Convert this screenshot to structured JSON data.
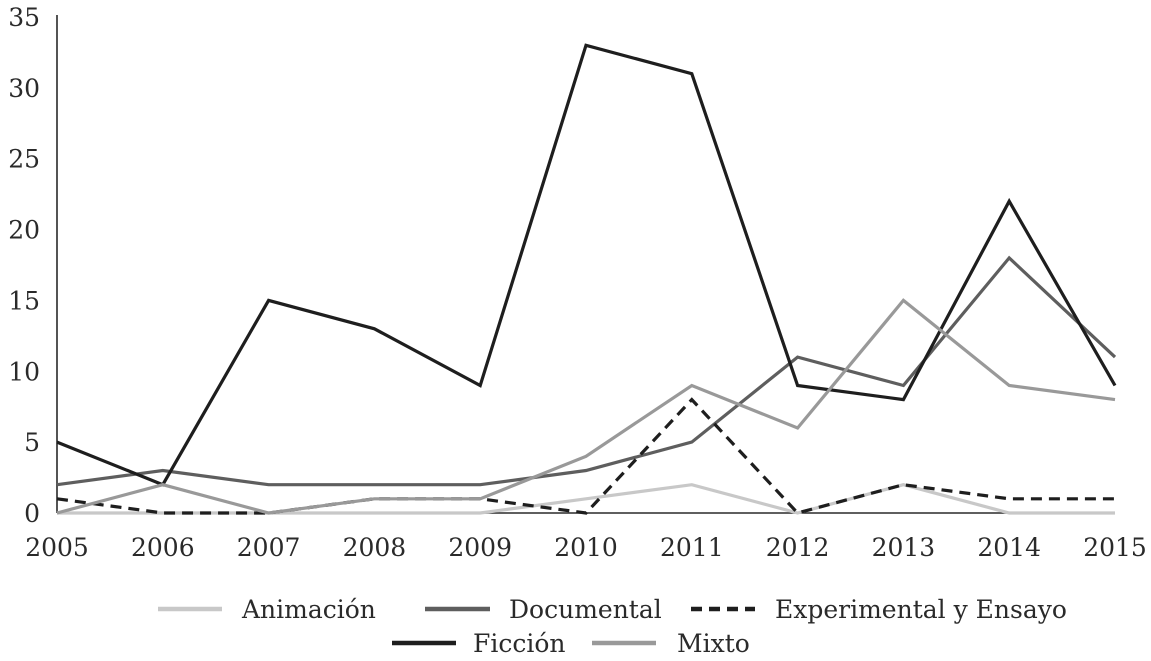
{
  "chart_data": {
    "type": "line",
    "title": "",
    "xlabel": "",
    "ylabel": "",
    "x": [
      "2005",
      "2006",
      "2007",
      "2008",
      "2009",
      "2010",
      "2011",
      "2012",
      "2013",
      "2014",
      "2015"
    ],
    "ylim": [
      0,
      35
    ],
    "yticks": [
      "0",
      "5",
      "10",
      "15",
      "20",
      "25",
      "30",
      "35"
    ],
    "grid": false,
    "legend_position": "bottom",
    "series": [
      {
        "name": "Animación",
        "values": [
          0,
          0,
          0,
          0,
          0,
          1,
          2,
          0,
          2,
          0,
          0
        ],
        "color": "#c8c8c8",
        "dash": "solid"
      },
      {
        "name": "Documental",
        "values": [
          2,
          3,
          2,
          2,
          2,
          3,
          5,
          11,
          9,
          18,
          11
        ],
        "color": "#5e5e5e",
        "dash": "solid"
      },
      {
        "name": "Experimental y Ensayo",
        "values": [
          1,
          0,
          0,
          1,
          1,
          0,
          8,
          0,
          2,
          1,
          1
        ],
        "color": "#1e1e1e",
        "dash": "dashed"
      },
      {
        "name": "Ficción",
        "values": [
          5,
          2,
          15,
          13,
          9,
          33,
          31,
          9,
          8,
          22,
          9
        ],
        "color": "#1e1e1e",
        "dash": "solid"
      },
      {
        "name": "Mixto",
        "values": [
          0,
          2,
          0,
          1,
          1,
          4,
          9,
          6,
          15,
          9,
          8
        ],
        "color": "#999999",
        "dash": "solid"
      }
    ]
  }
}
